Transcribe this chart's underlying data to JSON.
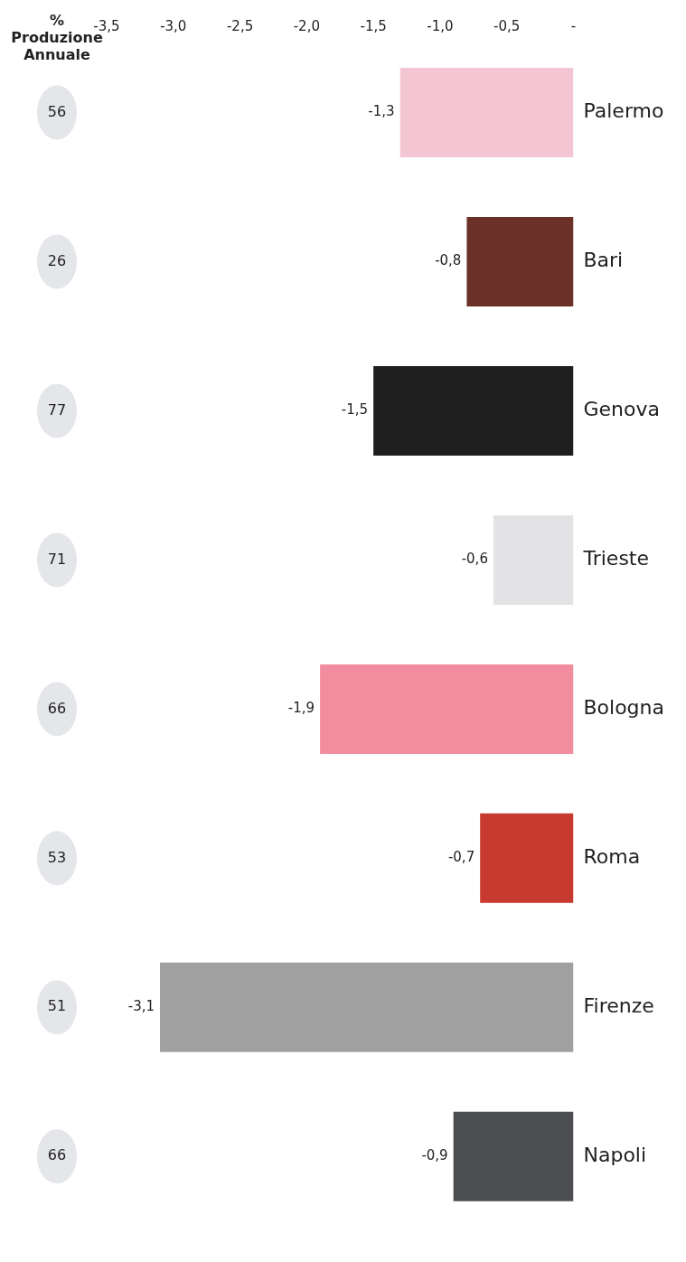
{
  "chart_data": {
    "type": "bar",
    "orientation": "horizontal",
    "categories": [
      "Palermo",
      "Bari",
      "Genova",
      "Trieste",
      "Bologna",
      "Roma",
      "Firenze",
      "Napoli"
    ],
    "values": [
      -1.3,
      -0.8,
      -1.5,
      -0.6,
      -1.9,
      -0.7,
      -3.1,
      -0.9
    ],
    "colors": [
      "#f4c6d4",
      "#6b3028",
      "#1e1e1e",
      "#e3e3e6",
      "#f28da0",
      "#c8392f",
      "#a0a0a0",
      "#4b4d50"
    ],
    "xlim": [
      -3.5,
      0
    ],
    "xticks": [
      {
        "value": -3.5,
        "label": "-3,5"
      },
      {
        "value": -3,
        "label": "-3,0"
      },
      {
        "value": -2.5,
        "label": "-2,5"
      },
      {
        "value": -2,
        "label": "-2,0"
      },
      {
        "value": -1.5,
        "label": "-1,5"
      },
      {
        "value": -1,
        "label": "-1,0"
      },
      {
        "value": -0.5,
        "label": "-0,5"
      },
      {
        "value": 0,
        "label": "-"
      }
    ],
    "value_labels": [
      "-1,3",
      "-0,8",
      "-1,5",
      "-0,6",
      "-1,9",
      "-0,7",
      "-3,1",
      "-0,9"
    ],
    "grid": false,
    "legend": false,
    "annotations": [
      "% Produzione Annuale",
      "56",
      "26",
      "77",
      "71",
      "66",
      "53",
      "51",
      "66"
    ]
  }
}
